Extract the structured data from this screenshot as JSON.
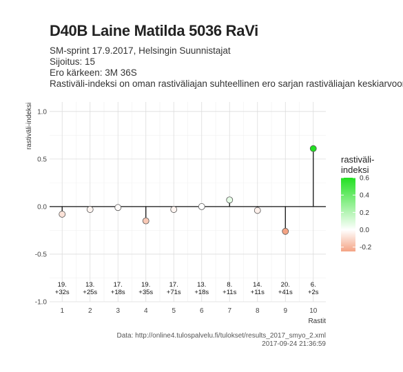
{
  "header": {
    "title": "D40B Laine Matilda 5036 RaVi",
    "subtitle_lines": [
      "SM-sprint 17.9.2017, Helsingin Suunnistajat",
      "Sijoitus: 15",
      "Ero kärkeen: 3M 36S",
      "Rastiväli-indeksi on oman rastiväliajan suhteellinen ero sarjan rastiväliajan keskiarvoon"
    ]
  },
  "caption": {
    "source": "Data: http://online4.tulospalvelu.fi/tulokset/results_2017_smyo_2.xml",
    "timestamp": "2017-09-24 21:36:59"
  },
  "chart_data": {
    "type": "scatter",
    "xlabel": "Rastit",
    "ylabel": "rastiväli-indeksi",
    "xlim": [
      0.55,
      10.45
    ],
    "ylim": [
      -1.0,
      1.1
    ],
    "x_ticks": [
      1,
      2,
      3,
      4,
      5,
      6,
      7,
      8,
      9,
      10
    ],
    "y_ticks": [
      -1.0,
      -0.5,
      0.0,
      0.5,
      1.0
    ],
    "y_tick_labels": [
      "-1.0",
      "-0.5",
      "0.0",
      "0.5",
      "1.0"
    ],
    "grid": true,
    "x": [
      1,
      2,
      3,
      4,
      5,
      6,
      7,
      8,
      9,
      10
    ],
    "values": [
      -0.08,
      -0.03,
      -0.01,
      -0.15,
      -0.03,
      0.0,
      0.07,
      -0.04,
      -0.26,
      0.61
    ],
    "rank_labels": [
      "19.",
      "13.",
      "17.",
      "19.",
      "17.",
      "13.",
      "8.",
      "14.",
      "20.",
      "6."
    ],
    "time_labels": [
      "+32s",
      "+25s",
      "+18s",
      "+35s",
      "+71s",
      "+18s",
      "+11s",
      "+11s",
      "+41s",
      "+2s"
    ],
    "label_y": -0.9,
    "legend": {
      "title_lines": [
        "rastiväli-",
        "indeksi"
      ],
      "position": "right",
      "min": -0.25,
      "max": 0.6,
      "ticks": [
        0.6,
        0.4,
        0.2,
        0.0,
        -0.2
      ],
      "tick_labels": [
        "0.6",
        "0.4",
        "0.2",
        "0.0",
        "-0.2"
      ]
    },
    "colors": {
      "positive": "#22e022",
      "neutral": "#ffffff",
      "negative": "#f4a384"
    }
  }
}
